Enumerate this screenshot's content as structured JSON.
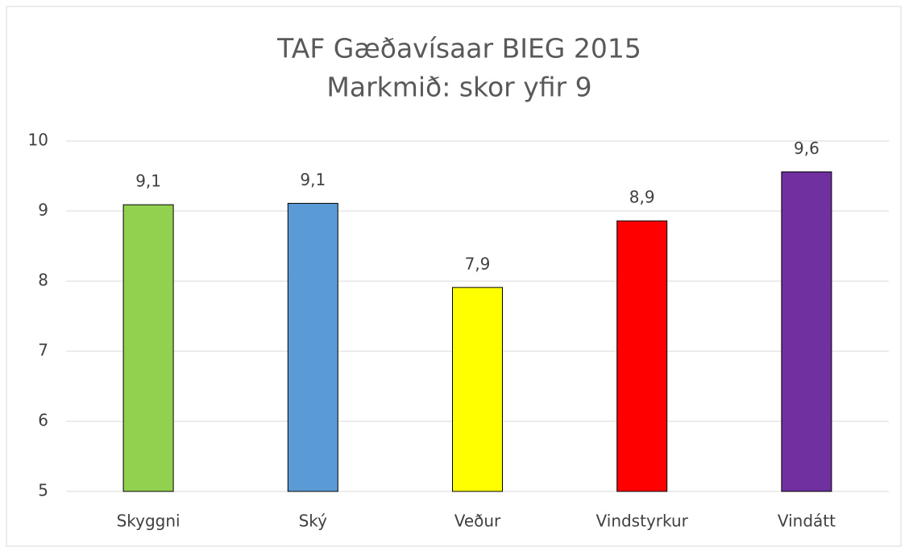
{
  "chart_data": {
    "type": "bar",
    "title": "TAF Gæðavísaar BIEG 2015",
    "subtitle": "Markmið: skor yfir 9",
    "categories": [
      "Skyggni",
      "Ský",
      "Veður",
      "Vindstyrkur",
      "Vindátt"
    ],
    "values": [
      9.09,
      9.11,
      7.91,
      8.86,
      9.56
    ],
    "value_labels": [
      "9,1",
      "9,1",
      "7,9",
      "8,9",
      "9,6"
    ],
    "colors": [
      "#92d050",
      "#5b9bd5",
      "#ffff00",
      "#ff0000",
      "#7030a0"
    ],
    "ylim": [
      5,
      10
    ],
    "yticks": [
      5,
      6,
      7,
      8,
      9,
      10
    ],
    "grid": true
  }
}
